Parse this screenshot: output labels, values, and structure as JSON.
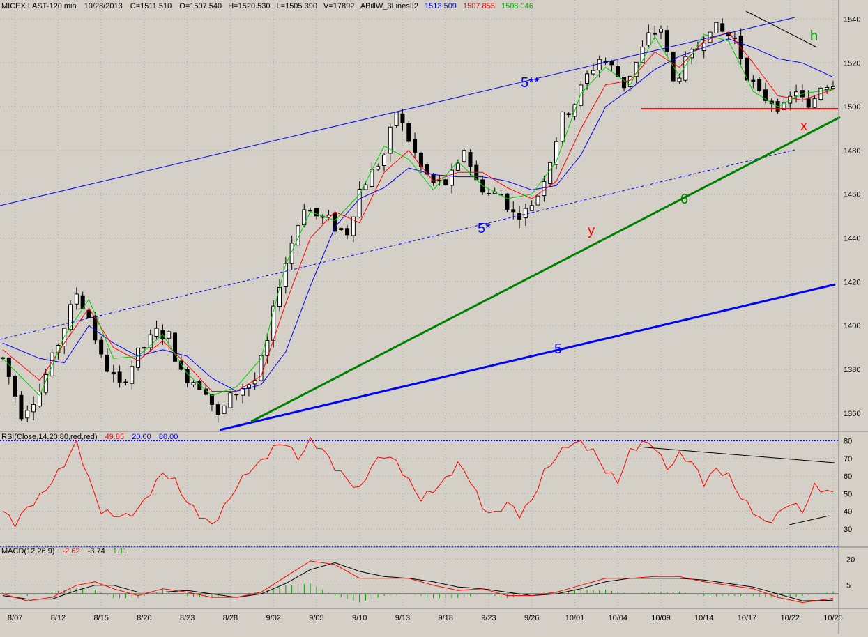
{
  "header": {
    "symbol": "MICEX LAST-120 min",
    "date": "10/28/2013",
    "close": "C=1511.510",
    "open": "O=1507.540",
    "high": "H=1520.530",
    "low": "L=1505.390",
    "volume": "V=17892",
    "indicator_name": "ABillW_3LinesII2",
    "ind_blue": "1513.509",
    "ind_red": "1507.855",
    "ind_green": "1508.046"
  },
  "rsi_header": {
    "label": "RSI(Close,14,20,80,red,red)",
    "value": "49.85",
    "lower": "20.00",
    "upper": "80.00"
  },
  "macd_header": {
    "label": "MACD(12,26,9)",
    "macd": "-2.62",
    "signal": "-3.74",
    "hist": "1.11"
  },
  "colors": {
    "background": "#d4d0c8",
    "grid": "#a8a8a8",
    "candle": "#000000",
    "ma_blue": "#0000ff",
    "ma_red": "#ff0000",
    "ma_green": "#00cc00",
    "rsi": "#ff0000",
    "trend_blue": "#0000ff",
    "trend_green": "#008000",
    "support": "#ff0000"
  },
  "annotations": {
    "a5dstar": "5**",
    "a5star": "5*",
    "a5": "5",
    "a6": "6",
    "ay": "y",
    "ax": "x",
    "ah": "h"
  },
  "chart_data": {
    "type": "candlestick",
    "title": "MICEX LAST-120 min",
    "x_tick_labels": [
      "8/07",
      "8/12",
      "8/15",
      "8/20",
      "8/23",
      "8/28",
      "9/02",
      "9/05",
      "9/10",
      "9/13",
      "9/18",
      "9/23",
      "9/26",
      "10/01",
      "10/04",
      "10/09",
      "10/14",
      "10/17",
      "10/22",
      "10/25"
    ],
    "price_axis": {
      "ticks": [
        1360,
        1380,
        1400,
        1420,
        1440,
        1460,
        1480,
        1500,
        1520,
        1540
      ],
      "range": [
        1352,
        1543
      ]
    },
    "rsi_axis": {
      "ticks": [
        30,
        40,
        50,
        60,
        70,
        80
      ],
      "range": [
        20,
        81
      ],
      "levels": [
        20,
        80
      ]
    },
    "macd_axis": {
      "ticks": [
        5,
        20
      ],
      "range": [
        -8,
        23
      ],
      "zero": 0
    },
    "price_path": [
      [
        0,
        1385
      ],
      [
        3,
        1360
      ],
      [
        6,
        1370
      ],
      [
        9,
        1392
      ],
      [
        12,
        1415
      ],
      [
        14,
        1404
      ],
      [
        16,
        1385
      ],
      [
        19,
        1372
      ],
      [
        22,
        1387
      ],
      [
        25,
        1397
      ],
      [
        27,
        1395
      ],
      [
        29,
        1378
      ],
      [
        31,
        1375
      ],
      [
        33,
        1371
      ],
      [
        35,
        1358
      ],
      [
        37,
        1367
      ],
      [
        39,
        1372
      ],
      [
        41,
        1375
      ],
      [
        43,
        1392
      ],
      [
        45,
        1420
      ],
      [
        47,
        1438
      ],
      [
        49,
        1455
      ],
      [
        51,
        1450
      ],
      [
        53,
        1448
      ],
      [
        54,
        1445
      ],
      [
        56,
        1443
      ],
      [
        58,
        1462
      ],
      [
        60,
        1470
      ],
      [
        62,
        1478
      ],
      [
        64,
        1498
      ],
      [
        66,
        1485
      ],
      [
        68,
        1472
      ],
      [
        70,
        1465
      ],
      [
        72,
        1465
      ],
      [
        74,
        1472
      ],
      [
        75,
        1481
      ],
      [
        77,
        1466
      ],
      [
        79,
        1460
      ],
      [
        81,
        1460
      ],
      [
        83,
        1451
      ],
      [
        85,
        1452
      ],
      [
        87,
        1460
      ],
      [
        89,
        1476
      ],
      [
        91,
        1495
      ],
      [
        93,
        1502
      ],
      [
        95,
        1514
      ],
      [
        97,
        1522
      ],
      [
        99,
        1518
      ],
      [
        101,
        1510
      ],
      [
        103,
        1520
      ],
      [
        105,
        1532
      ],
      [
        107,
        1536
      ],
      [
        109,
        1511
      ],
      [
        111,
        1520
      ],
      [
        113,
        1527
      ],
      [
        115,
        1537
      ],
      [
        117,
        1534
      ],
      [
        119,
        1531
      ],
      [
        121,
        1515
      ],
      [
        123,
        1505
      ],
      [
        125,
        1503
      ],
      [
        127,
        1499
      ],
      [
        129,
        1508
      ],
      [
        131,
        1498
      ],
      [
        133,
        1510
      ],
      [
        135,
        1511.5
      ]
    ],
    "series": [
      {
        "name": "1513.509",
        "color": "#0000ff",
        "points": [
          [
            0,
            1392
          ],
          [
            6,
            1385
          ],
          [
            10,
            1383
          ],
          [
            14,
            1400
          ],
          [
            18,
            1392
          ],
          [
            22,
            1386
          ],
          [
            26,
            1389
          ],
          [
            30,
            1386
          ],
          [
            34,
            1376
          ],
          [
            38,
            1370
          ],
          [
            42,
            1373
          ],
          [
            46,
            1388
          ],
          [
            50,
            1418
          ],
          [
            54,
            1445
          ],
          [
            58,
            1458
          ],
          [
            62,
            1463
          ],
          [
            66,
            1472
          ],
          [
            70,
            1469
          ],
          [
            74,
            1468
          ],
          [
            78,
            1468
          ],
          [
            82,
            1466
          ],
          [
            86,
            1462
          ],
          [
            90,
            1464
          ],
          [
            94,
            1478
          ],
          [
            98,
            1500
          ],
          [
            102,
            1508
          ],
          [
            106,
            1517
          ],
          [
            110,
            1523
          ],
          [
            114,
            1527
          ],
          [
            118,
            1531
          ],
          [
            122,
            1527
          ],
          [
            126,
            1522
          ],
          [
            130,
            1520
          ],
          [
            135,
            1513.5
          ]
        ]
      },
      {
        "name": "1507.855",
        "color": "#ff0000",
        "points": [
          [
            0,
            1389
          ],
          [
            6,
            1375
          ],
          [
            10,
            1392
          ],
          [
            14,
            1408
          ],
          [
            18,
            1390
          ],
          [
            22,
            1384
          ],
          [
            26,
            1393
          ],
          [
            30,
            1382
          ],
          [
            34,
            1370
          ],
          [
            38,
            1370
          ],
          [
            42,
            1377
          ],
          [
            46,
            1410
          ],
          [
            50,
            1440
          ],
          [
            54,
            1452
          ],
          [
            58,
            1447
          ],
          [
            62,
            1470
          ],
          [
            66,
            1480
          ],
          [
            70,
            1466
          ],
          [
            74,
            1470
          ],
          [
            78,
            1470
          ],
          [
            82,
            1463
          ],
          [
            86,
            1458
          ],
          [
            90,
            1466
          ],
          [
            94,
            1490
          ],
          [
            98,
            1510
          ],
          [
            102,
            1512
          ],
          [
            106,
            1525
          ],
          [
            110,
            1518
          ],
          [
            114,
            1530
          ],
          [
            118,
            1534
          ],
          [
            122,
            1520
          ],
          [
            126,
            1505
          ],
          [
            130,
            1503
          ],
          [
            135,
            1507.9
          ]
        ]
      },
      {
        "name": "1508.046",
        "color": "#00cc00",
        "points": [
          [
            0,
            1385
          ],
          [
            6,
            1368
          ],
          [
            10,
            1395
          ],
          [
            14,
            1412
          ],
          [
            18,
            1385
          ],
          [
            22,
            1386
          ],
          [
            26,
            1396
          ],
          [
            30,
            1378
          ],
          [
            34,
            1368
          ],
          [
            38,
            1372
          ],
          [
            42,
            1385
          ],
          [
            46,
            1428
          ],
          [
            50,
            1452
          ],
          [
            54,
            1448
          ],
          [
            58,
            1460
          ],
          [
            62,
            1482
          ],
          [
            66,
            1476
          ],
          [
            70,
            1462
          ],
          [
            74,
            1475
          ],
          [
            78,
            1464
          ],
          [
            82,
            1458
          ],
          [
            86,
            1460
          ],
          [
            90,
            1475
          ],
          [
            94,
            1506
          ],
          [
            98,
            1518
          ],
          [
            102,
            1510
          ],
          [
            106,
            1532
          ],
          [
            110,
            1514
          ],
          [
            114,
            1533
          ],
          [
            118,
            1530
          ],
          [
            122,
            1507
          ],
          [
            126,
            1500
          ],
          [
            130,
            1506
          ],
          [
            135,
            1508
          ]
        ]
      }
    ],
    "rsi_values": [
      [
        0,
        40
      ],
      [
        2,
        33
      ],
      [
        4,
        42
      ],
      [
        6,
        48
      ],
      [
        8,
        57
      ],
      [
        10,
        67
      ],
      [
        12,
        79
      ],
      [
        14,
        58
      ],
      [
        16,
        40
      ],
      [
        18,
        38
      ],
      [
        20,
        37
      ],
      [
        22,
        41
      ],
      [
        24,
        51
      ],
      [
        26,
        62
      ],
      [
        28,
        57
      ],
      [
        30,
        45
      ],
      [
        32,
        38
      ],
      [
        34,
        32
      ],
      [
        36,
        42
      ],
      [
        38,
        54
      ],
      [
        40,
        63
      ],
      [
        42,
        68
      ],
      [
        44,
        76
      ],
      [
        46,
        79
      ],
      [
        48,
        70
      ],
      [
        50,
        80
      ],
      [
        52,
        75
      ],
      [
        54,
        65
      ],
      [
        56,
        58
      ],
      [
        58,
        52
      ],
      [
        60,
        66
      ],
      [
        62,
        72
      ],
      [
        64,
        68
      ],
      [
        66,
        57
      ],
      [
        68,
        47
      ],
      [
        70,
        52
      ],
      [
        72,
        58
      ],
      [
        74,
        67
      ],
      [
        76,
        58
      ],
      [
        78,
        42
      ],
      [
        80,
        38
      ],
      [
        82,
        45
      ],
      [
        84,
        38
      ],
      [
        86,
        46
      ],
      [
        88,
        62
      ],
      [
        90,
        71
      ],
      [
        92,
        78
      ],
      [
        94,
        79
      ],
      [
        96,
        74
      ],
      [
        98,
        63
      ],
      [
        100,
        57
      ],
      [
        102,
        74
      ],
      [
        104,
        79
      ],
      [
        106,
        77
      ],
      [
        108,
        64
      ],
      [
        110,
        72
      ],
      [
        112,
        68
      ],
      [
        114,
        56
      ],
      [
        116,
        64
      ],
      [
        118,
        60
      ],
      [
        120,
        48
      ],
      [
        122,
        40
      ],
      [
        124,
        33
      ],
      [
        126,
        38
      ],
      [
        128,
        45
      ],
      [
        130,
        40
      ],
      [
        132,
        54
      ],
      [
        135,
        50
      ]
    ],
    "macd_line": [
      [
        0,
        0
      ],
      [
        4,
        -4
      ],
      [
        8,
        -2
      ],
      [
        12,
        5
      ],
      [
        15,
        7
      ],
      [
        18,
        3
      ],
      [
        22,
        -1
      ],
      [
        26,
        3
      ],
      [
        30,
        1
      ],
      [
        34,
        -2
      ],
      [
        38,
        -2
      ],
      [
        42,
        1
      ],
      [
        46,
        10
      ],
      [
        50,
        19
      ],
      [
        54,
        17
      ],
      [
        58,
        9
      ],
      [
        62,
        9
      ],
      [
        66,
        9
      ],
      [
        70,
        5
      ],
      [
        74,
        2
      ],
      [
        78,
        3
      ],
      [
        82,
        -1
      ],
      [
        86,
        -1
      ],
      [
        90,
        1
      ],
      [
        94,
        5
      ],
      [
        98,
        9
      ],
      [
        102,
        9
      ],
      [
        106,
        10
      ],
      [
        110,
        10
      ],
      [
        114,
        7
      ],
      [
        118,
        5
      ],
      [
        122,
        3
      ],
      [
        126,
        -2
      ],
      [
        130,
        -5
      ],
      [
        135,
        -2.6
      ]
    ],
    "signal_line": [
      [
        0,
        -1
      ],
      [
        4,
        -3
      ],
      [
        8,
        -3
      ],
      [
        12,
        2
      ],
      [
        15,
        5
      ],
      [
        18,
        5
      ],
      [
        22,
        1
      ],
      [
        26,
        1
      ],
      [
        30,
        2
      ],
      [
        34,
        0
      ],
      [
        38,
        -2
      ],
      [
        42,
        0
      ],
      [
        46,
        6
      ],
      [
        50,
        14
      ],
      [
        54,
        18
      ],
      [
        58,
        13
      ],
      [
        62,
        10
      ],
      [
        66,
        9
      ],
      [
        70,
        7
      ],
      [
        74,
        4
      ],
      [
        78,
        3
      ],
      [
        82,
        1
      ],
      [
        86,
        -1
      ],
      [
        90,
        0
      ],
      [
        94,
        3
      ],
      [
        98,
        7
      ],
      [
        102,
        9
      ],
      [
        106,
        9
      ],
      [
        110,
        9
      ],
      [
        114,
        8
      ],
      [
        118,
        6
      ],
      [
        122,
        4
      ],
      [
        126,
        0
      ],
      [
        130,
        -4
      ],
      [
        135,
        -3.7
      ]
    ],
    "hist_amplitude_scale": 0.6
  }
}
